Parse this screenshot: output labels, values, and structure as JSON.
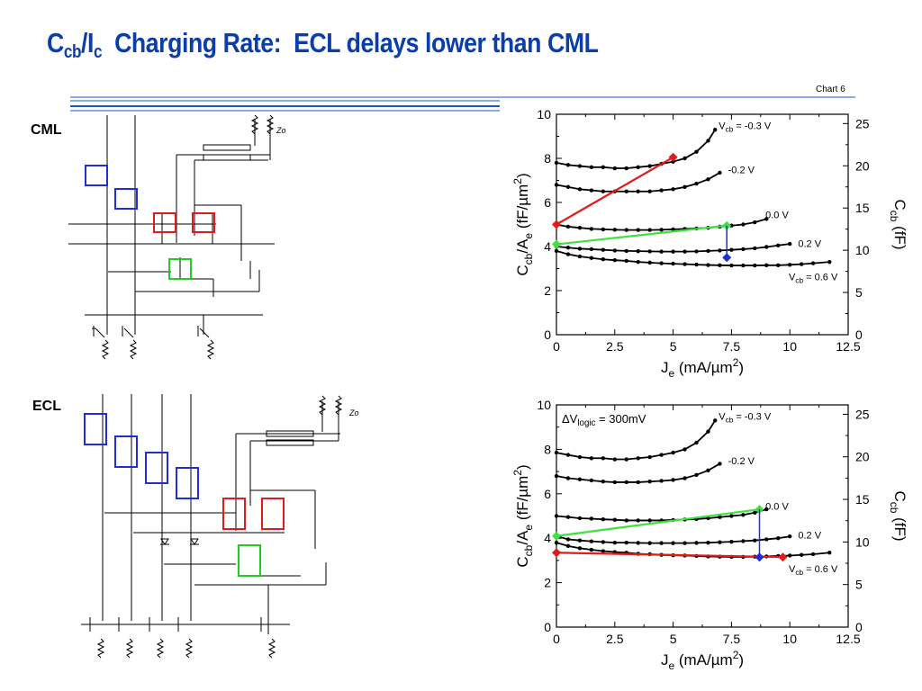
{
  "slide": {
    "title": {
      "c": "C",
      "cb": "cb",
      "slash": "/I",
      "c2": "c",
      "rest": "  Charging Rate:  ECL delays lower than CML"
    },
    "chart_number": "Chart 6",
    "cml_label": "CML",
    "ecl_label": "ECL",
    "zo_label": "Zo"
  },
  "chart_data": [
    {
      "type": "line",
      "title": "",
      "xlabel": "J_e (mA/µm²)",
      "ylabel": "C_cb/A_e (fF/µm²)",
      "y2label": "C_cb (fF)",
      "xlim": [
        0,
        12.5
      ],
      "ylim": [
        0,
        10
      ],
      "y2lim": [
        0,
        26.1
      ],
      "xticks": [
        "0",
        "2.5",
        "5",
        "7.5",
        "10",
        "12.5"
      ],
      "yticks": [
        "0",
        "2",
        "4",
        "6",
        "8",
        "10"
      ],
      "y2ticks": [
        "0",
        "5",
        "10",
        "15",
        "20",
        "25"
      ],
      "series": [
        {
          "name": "Vcb = -0.3 V",
          "x": [
            0,
            0.5,
            1,
            1.5,
            2,
            2.5,
            3,
            3.5,
            4,
            4.5,
            5,
            5.5,
            6,
            6.5,
            6.8
          ],
          "y": [
            7.8,
            7.7,
            7.65,
            7.6,
            7.6,
            7.55,
            7.55,
            7.6,
            7.65,
            7.75,
            7.85,
            8.0,
            8.3,
            8.8,
            9.3
          ]
        },
        {
          "name": "-0.2 V",
          "x": [
            0,
            0.5,
            1,
            1.5,
            2,
            2.5,
            3,
            3.5,
            4,
            4.5,
            5,
            5.5,
            6,
            6.5,
            7
          ],
          "y": [
            6.8,
            6.7,
            6.6,
            6.55,
            6.5,
            6.5,
            6.5,
            6.5,
            6.5,
            6.55,
            6.6,
            6.7,
            6.85,
            7.05,
            7.35
          ]
        },
        {
          "name": "0.0 V",
          "x": [
            0,
            0.5,
            1,
            1.5,
            2,
            2.5,
            3,
            3.5,
            4,
            4.5,
            5,
            5.5,
            6,
            6.5,
            7,
            7.5,
            8,
            8.5,
            9
          ],
          "y": [
            5.0,
            4.9,
            4.85,
            4.8,
            4.78,
            4.76,
            4.75,
            4.75,
            4.75,
            4.76,
            4.78,
            4.8,
            4.82,
            4.85,
            4.9,
            4.95,
            5.0,
            5.1,
            5.25
          ]
        },
        {
          "name": "0.2 V",
          "x": [
            0,
            0.5,
            1,
            1.5,
            2,
            2.5,
            3,
            3.5,
            4,
            4.5,
            5,
            5.5,
            6,
            6.5,
            7,
            7.5,
            8,
            8.5,
            9,
            9.5,
            10
          ],
          "y": [
            4.0,
            3.95,
            3.9,
            3.88,
            3.85,
            3.82,
            3.8,
            3.79,
            3.78,
            3.77,
            3.77,
            3.77,
            3.78,
            3.8,
            3.82,
            3.85,
            3.88,
            3.92,
            3.98,
            4.05,
            4.12
          ]
        },
        {
          "name": "Vcb = 0.6 V",
          "x": [
            0,
            0.5,
            1,
            1.5,
            2,
            2.5,
            3,
            3.5,
            4,
            4.5,
            5,
            5.5,
            6,
            6.5,
            7,
            7.5,
            8,
            8.5,
            9,
            9.5,
            10,
            10.5,
            11,
            11.7
          ],
          "y": [
            3.8,
            3.65,
            3.55,
            3.48,
            3.42,
            3.38,
            3.35,
            3.3,
            3.27,
            3.24,
            3.22,
            3.2,
            3.18,
            3.16,
            3.15,
            3.14,
            3.14,
            3.14,
            3.15,
            3.15,
            3.17,
            3.2,
            3.24,
            3.3
          ]
        }
      ],
      "annotations": [
        {
          "type": "red",
          "x": [
            0,
            5
          ],
          "y": [
            5.0,
            8.05
          ]
        },
        {
          "type": "green",
          "x": [
            0,
            7.3
          ],
          "y": [
            4.1,
            4.95
          ]
        },
        {
          "type": "blue",
          "x": [
            7.3,
            7.3
          ],
          "y": [
            4.95,
            3.5
          ]
        }
      ],
      "series_labels": [
        {
          "text": "V",
          "sub": "cb",
          "rest": " = -0.3 V",
          "x": 6.8,
          "y": 9.45
        },
        {
          "text": "-0.2 V",
          "sub": "",
          "rest": "",
          "x": 7.2,
          "y": 7.45
        },
        {
          "text": "0.0 V",
          "sub": "",
          "rest": "",
          "x": 8.8,
          "y": 5.4
        },
        {
          "text": "0.2 V",
          "sub": "",
          "rest": "",
          "x": 10.2,
          "y": 4.1
        },
        {
          "text": "V",
          "sub": "cb",
          "rest": " = 0.6 V",
          "x": 9.8,
          "y": 2.6
        }
      ],
      "note": ""
    },
    {
      "type": "line",
      "title": "",
      "xlabel": "J_e (mA/µm²)",
      "ylabel": "C_cb/A_e (fF/µm²)",
      "y2label": "C_cb (fF)",
      "xlim": [
        0,
        12.5
      ],
      "ylim": [
        0,
        10
      ],
      "y2lim": [
        0,
        26.1
      ],
      "xticks": [
        "0",
        "2.5",
        "5",
        "7.5",
        "10",
        "12.5"
      ],
      "yticks": [
        "0",
        "2",
        "4",
        "6",
        "8",
        "10"
      ],
      "y2ticks": [
        "0",
        "5",
        "10",
        "15",
        "20",
        "25"
      ],
      "series": [
        {
          "name": "Vcb = -0.3 V",
          "x": [
            0,
            0.5,
            1,
            1.5,
            2,
            2.5,
            3,
            3.5,
            4,
            4.5,
            5,
            5.5,
            6,
            6.5,
            6.8
          ],
          "y": [
            7.85,
            7.75,
            7.65,
            7.6,
            7.6,
            7.55,
            7.55,
            7.6,
            7.65,
            7.75,
            7.85,
            8.0,
            8.3,
            8.8,
            9.3
          ]
        },
        {
          "name": "-0.2 V",
          "x": [
            0,
            0.5,
            1,
            1.5,
            2,
            2.5,
            3,
            3.5,
            4,
            4.5,
            5,
            5.5,
            6,
            6.5,
            7
          ],
          "y": [
            6.8,
            6.7,
            6.65,
            6.6,
            6.55,
            6.52,
            6.52,
            6.52,
            6.55,
            6.58,
            6.62,
            6.7,
            6.85,
            7.05,
            7.35
          ]
        },
        {
          "name": "0.0 V",
          "x": [
            0,
            0.5,
            1,
            1.5,
            2,
            2.5,
            3,
            3.5,
            4,
            4.5,
            5,
            5.5,
            6,
            6.5,
            7,
            7.5,
            8,
            8.5,
            9
          ],
          "y": [
            5.0,
            4.95,
            4.9,
            4.88,
            4.85,
            4.83,
            4.8,
            4.8,
            4.8,
            4.8,
            4.82,
            4.84,
            4.86,
            4.9,
            4.95,
            5.0,
            5.05,
            5.15,
            5.3
          ]
        },
        {
          "name": "0.2 V",
          "x": [
            0,
            0.5,
            1,
            1.5,
            2,
            2.5,
            3,
            3.5,
            4,
            4.5,
            5,
            5.5,
            6,
            6.5,
            7,
            7.5,
            8,
            8.5,
            9,
            9.5,
            10
          ],
          "y": [
            4.1,
            3.95,
            3.9,
            3.86,
            3.83,
            3.8,
            3.8,
            3.79,
            3.78,
            3.78,
            3.78,
            3.78,
            3.79,
            3.8,
            3.82,
            3.84,
            3.87,
            3.9,
            3.95,
            4.0,
            4.08
          ]
        },
        {
          "name": "Vcb = 0.6 V",
          "x": [
            0,
            0.5,
            1,
            1.5,
            2,
            2.5,
            3,
            3.5,
            4,
            4.5,
            5,
            5.5,
            6,
            6.5,
            7,
            7.5,
            8,
            8.5,
            9,
            9.5,
            10,
            10.5,
            11,
            11.7
          ],
          "y": [
            3.8,
            3.65,
            3.55,
            3.48,
            3.42,
            3.38,
            3.35,
            3.3,
            3.28,
            3.25,
            3.23,
            3.22,
            3.2,
            3.18,
            3.17,
            3.16,
            3.16,
            3.17,
            3.18,
            3.2,
            3.22,
            3.25,
            3.28,
            3.35
          ]
        }
      ],
      "annotations": [
        {
          "type": "red",
          "x": [
            0,
            9.7
          ],
          "y": [
            3.35,
            3.15
          ]
        },
        {
          "type": "green",
          "x": [
            0,
            8.7
          ],
          "y": [
            4.1,
            5.3
          ]
        },
        {
          "type": "blue",
          "x": [
            8.7,
            8.7
          ],
          "y": [
            5.3,
            3.15
          ]
        }
      ],
      "series_labels": [
        {
          "text": "V",
          "sub": "cb",
          "rest": " = -0.3 V",
          "x": 6.8,
          "y": 9.45
        },
        {
          "text": "-0.2 V",
          "sub": "",
          "rest": "",
          "x": 7.2,
          "y": 7.45
        },
        {
          "text": "0.0 V",
          "sub": "",
          "rest": "",
          "x": 8.8,
          "y": 5.4
        },
        {
          "text": "0.2 V",
          "sub": "",
          "rest": "",
          "x": 10.2,
          "y": 4.1
        },
        {
          "text": "V",
          "sub": "cb",
          "rest": " = 0.6 V",
          "x": 9.8,
          "y": 2.6
        }
      ],
      "note": {
        "delta": "ΔV",
        "sub": "logic",
        "rest": " = 300mV"
      }
    }
  ]
}
